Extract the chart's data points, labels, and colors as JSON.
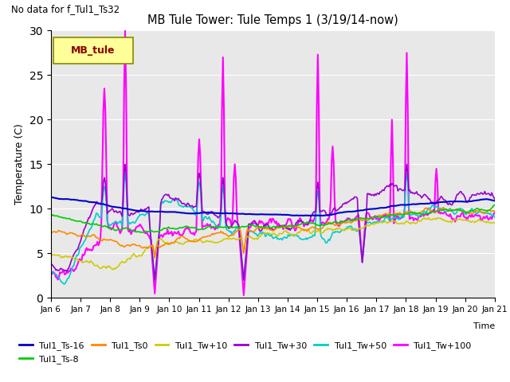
{
  "title": "MB Tule Tower: Tule Temps 1 (3/19/14-now)",
  "no_data_text": "No data for f_Tul1_Ts32",
  "ylabel": "Temperature (C)",
  "xlabel": "Time",
  "xlim": [
    0,
    15
  ],
  "ylim": [
    0,
    30
  ],
  "yticks": [
    0,
    5,
    10,
    15,
    20,
    25,
    30
  ],
  "xtick_labels": [
    "Jan 6",
    "Jan 7",
    "Jan 8",
    "Jan 9",
    "Jan 10",
    "Jan 11",
    "Jan 12",
    "Jan 13",
    "Jan 14",
    "Jan 15",
    "Jan 16",
    "Jan 17",
    "Jan 18",
    "Jan 19",
    "Jan 20",
    "Jan 21"
  ],
  "series": {
    "Tul1_Ts-16": {
      "color": "#0000cc",
      "lw": 1.5
    },
    "Tul1_Ts-8": {
      "color": "#00cc00",
      "lw": 1.2
    },
    "Tul1_Ts0": {
      "color": "#ff8800",
      "lw": 1.2
    },
    "Tul1_Tw+10": {
      "color": "#cccc00",
      "lw": 1.2
    },
    "Tul1_Tw+30": {
      "color": "#9900cc",
      "lw": 1.2
    },
    "Tul1_Tw+50": {
      "color": "#00cccc",
      "lw": 1.2
    },
    "Tul1_Tw+100": {
      "color": "#ff00ff",
      "lw": 1.5
    }
  },
  "legend_box_color": "#ffff99",
  "legend_box_edge": "#888800",
  "legend_text": "MB_tule",
  "bg_color": "#e8e8e8"
}
